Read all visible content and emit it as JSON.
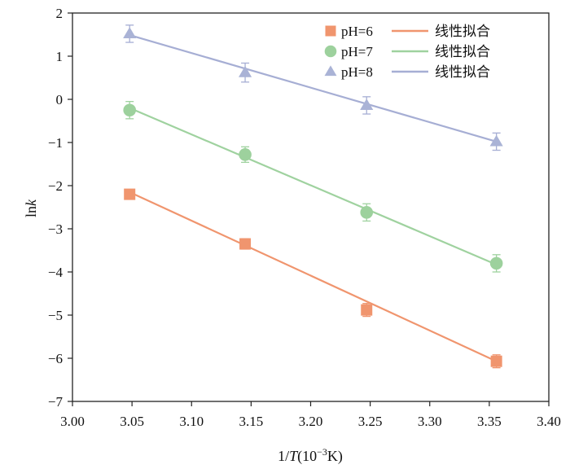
{
  "chart_data": {
    "type": "scatter",
    "xlabel_prefix": "1/",
    "xlabel_var": "T",
    "xlabel_suffix": "(10",
    "xlabel_exp": "−3",
    "xlabel_unit": "K)",
    "ylabel_prefix": "ln",
    "ylabel_var": "k",
    "xlim": [
      3.0,
      3.4
    ],
    "ylim": [
      -7,
      2
    ],
    "xticks": [
      "3.00",
      "3.05",
      "3.10",
      "3.15",
      "3.20",
      "3.25",
      "3.30",
      "3.35",
      "3.40"
    ],
    "yticks": [
      "2",
      "1",
      "0",
      "−1",
      "−2",
      "−3",
      "−4",
      "−5",
      "−6",
      "−7"
    ],
    "legend_position": "top-right",
    "series": [
      {
        "name": "pH=6",
        "fit_name": "线性拟合",
        "marker": "square",
        "marker_color": "#f0956e",
        "line_color": "#f0956e",
        "x": [
          3.048,
          3.145,
          3.247,
          3.356
        ],
        "y": [
          -2.2,
          -3.35,
          -4.88,
          -6.07
        ],
        "err": [
          0.1,
          0.12,
          0.15,
          0.15
        ],
        "fit": [
          [
            3.048,
            -2.15
          ],
          [
            3.356,
            -6.07
          ]
        ]
      },
      {
        "name": "pH=7",
        "fit_name": "线性拟合",
        "marker": "circle",
        "marker_color": "#9dd19d",
        "line_color": "#9fd29f",
        "x": [
          3.048,
          3.145,
          3.247,
          3.356
        ],
        "y": [
          -0.25,
          -1.28,
          -2.62,
          -3.8
        ],
        "err": [
          0.2,
          0.18,
          0.2,
          0.2
        ],
        "fit": [
          [
            3.048,
            -0.2
          ],
          [
            3.356,
            -3.83
          ]
        ]
      },
      {
        "name": "pH=8",
        "fit_name": "线性拟合",
        "marker": "triangle",
        "marker_color": "#aab3d6",
        "line_color": "#a6aed4",
        "x": [
          3.048,
          3.145,
          3.247,
          3.356
        ],
        "y": [
          1.52,
          0.62,
          -0.14,
          -0.98
        ],
        "err": [
          0.2,
          0.22,
          0.2,
          0.2
        ],
        "fit": [
          [
            3.048,
            1.49
          ],
          [
            3.356,
            -0.98
          ]
        ]
      }
    ]
  }
}
